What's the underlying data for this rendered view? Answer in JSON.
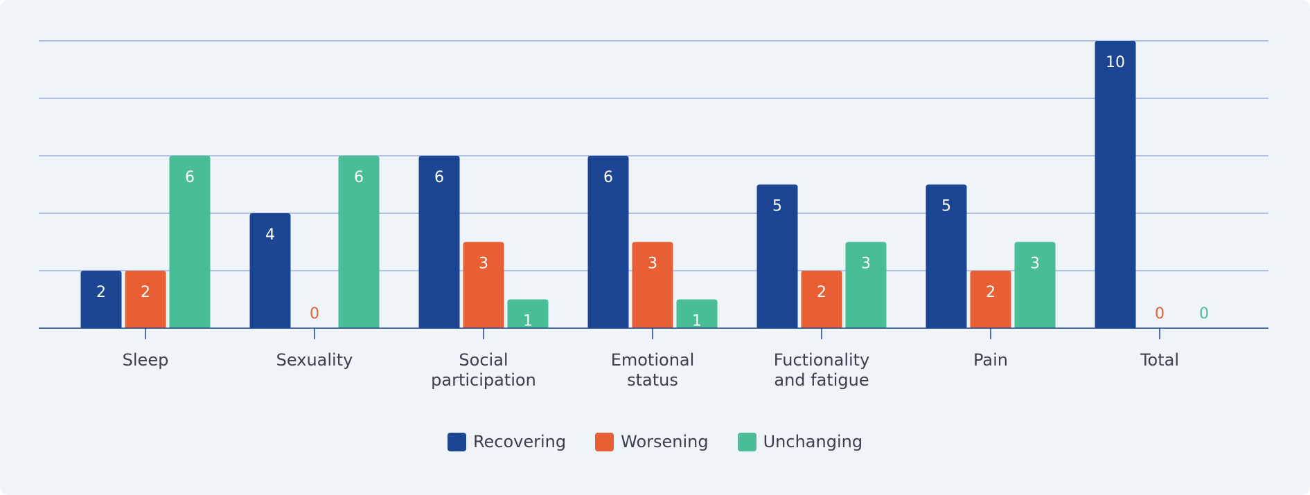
{
  "colors": {
    "recovering": "#1c4594",
    "worsening": "#e95f35",
    "unchanging": "#49bd95",
    "grid": "#8ea2d6",
    "axis": "#1c4594",
    "text": "#3a3f4a",
    "background": "#eff4f9"
  },
  "chart_data": {
    "type": "bar",
    "categories": [
      [
        "Sleep"
      ],
      [
        "Sexuality"
      ],
      [
        "Social",
        "participation"
      ],
      [
        "Emotional",
        "status"
      ],
      [
        "Fuctionality",
        "and fatigue"
      ],
      [
        "Pain"
      ],
      [
        "Total"
      ]
    ],
    "series": [
      {
        "name": "Recovering",
        "color": "#1c4594",
        "values": [
          2,
          4,
          6,
          6,
          5,
          5,
          10
        ]
      },
      {
        "name": "Worsening",
        "color": "#e95f35",
        "values": [
          2,
          0,
          3,
          3,
          2,
          2,
          0
        ]
      },
      {
        "name": "Unchanging",
        "color": "#49bd95",
        "values": [
          6,
          6,
          1,
          1,
          3,
          3,
          0
        ]
      }
    ],
    "ylim": [
      0,
      10
    ],
    "yticks": [
      0,
      2,
      4,
      6,
      8,
      10
    ],
    "grid": true,
    "value_labels": true,
    "legend_position": "bottom-center",
    "title": "",
    "xlabel": "",
    "ylabel": ""
  }
}
